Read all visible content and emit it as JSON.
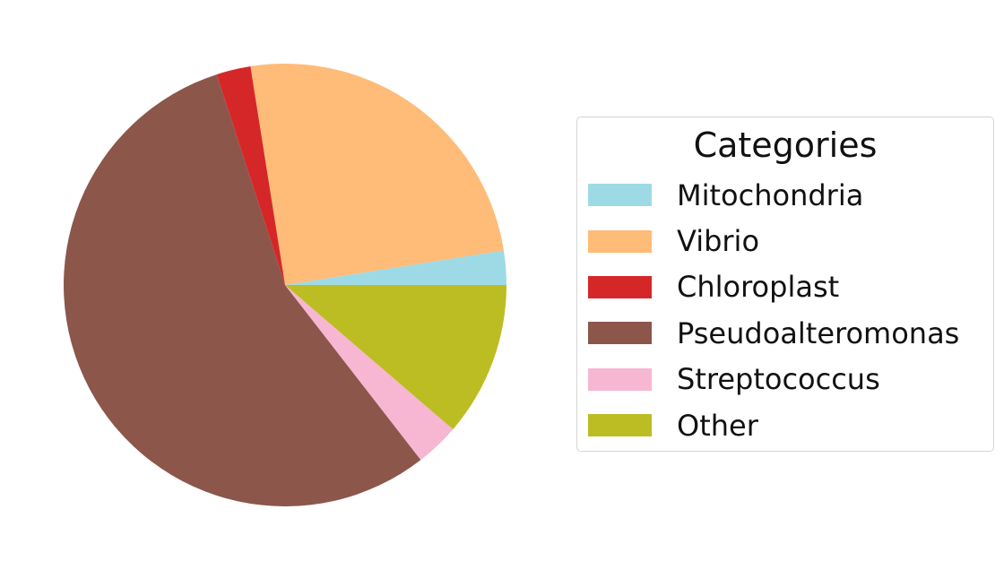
{
  "chart_data": {
    "type": "pie",
    "title": "",
    "start_angle_deg": 0,
    "direction": "counterclockwise",
    "slices": [
      {
        "label": "Mitochondria",
        "value": 2.5,
        "color": "#9edae5"
      },
      {
        "label": "Vibrio",
        "value": 25.0,
        "color": "#ffbb78"
      },
      {
        "label": "Chloroplast",
        "value": 2.5,
        "color": "#d62728"
      },
      {
        "label": "Pseudoalteromonas",
        "value": 55.5,
        "color": "#8c564b"
      },
      {
        "label": "Streptococcus",
        "value": 3.2,
        "color": "#f7b6d2"
      },
      {
        "label": "Other",
        "value": 11.3,
        "color": "#bcbd22"
      }
    ],
    "legend": {
      "title": "Categories",
      "placement": "right"
    }
  }
}
